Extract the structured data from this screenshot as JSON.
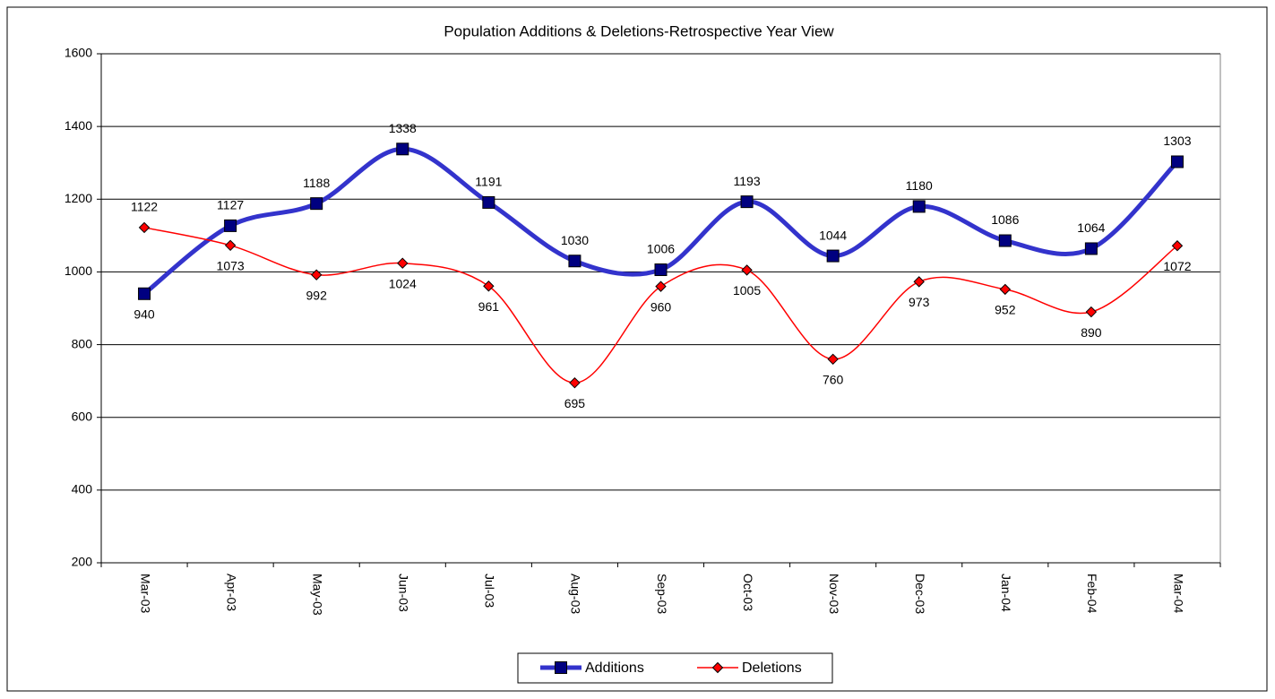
{
  "chart_data": {
    "type": "line",
    "title": "Population Additions & Deletions-Retrospective Year View",
    "categories": [
      "Mar-03",
      "Apr-03",
      "May-03",
      "Jun-03",
      "Jul-03",
      "Aug-03",
      "Sep-03",
      "Oct-03",
      "Nov-03",
      "Dec-03",
      "Jan-04",
      "Feb-04",
      "Mar-04"
    ],
    "series": [
      {
        "name": "Additions",
        "color": "#3333cc",
        "marker_color": "#000080",
        "marker": "square",
        "values": [
          940,
          1127,
          1188,
          1338,
          1191,
          1030,
          1006,
          1193,
          1044,
          1180,
          1086,
          1064,
          1303
        ]
      },
      {
        "name": "Deletions",
        "color": "#ff0000",
        "marker_color": "#ff0000",
        "marker": "diamond",
        "values": [
          1122,
          1073,
          992,
          1024,
          961,
          695,
          960,
          1005,
          760,
          973,
          952,
          890,
          1072
        ]
      }
    ],
    "ylim": [
      200,
      1600
    ],
    "yticks": [
      200,
      400,
      600,
      800,
      1000,
      1200,
      1400,
      1600
    ],
    "grid": true,
    "smooth": true,
    "legend": "bottom"
  }
}
